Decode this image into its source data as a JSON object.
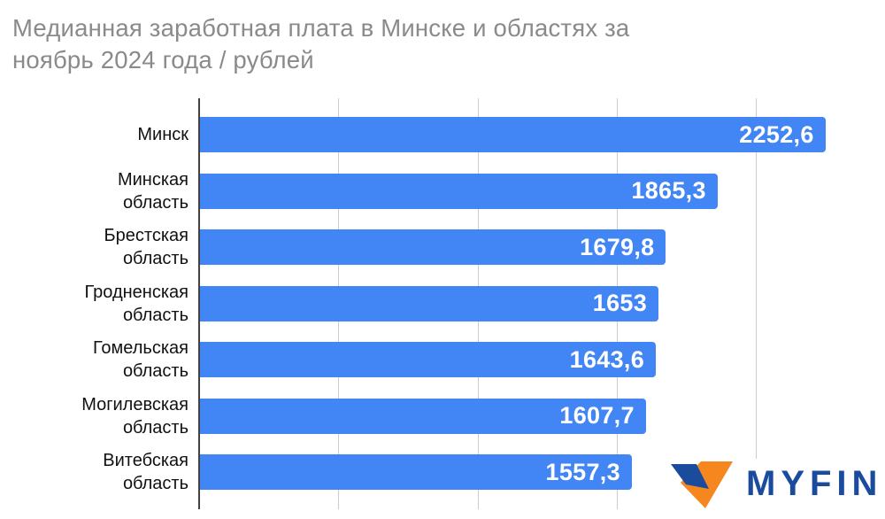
{
  "title": {
    "text": "Медианная заработная плата в Минске и областях за ноябрь 2024 года / рублей",
    "lines": [
      "Медианная заработная плата в Минске и областях за",
      "ноябрь 2024 года / рублей"
    ]
  },
  "chart_data": {
    "type": "bar",
    "orientation": "horizontal",
    "title": "Медианная заработная плата в Минске и областях за ноябрь 2024 года / рублей",
    "unit": "рублей",
    "categories": [
      "Минск",
      "Минская область",
      "Брестская область",
      "Гродненская область",
      "Гомельская область",
      "Могилевская область",
      "Витебская область"
    ],
    "category_lines": [
      [
        "Минск"
      ],
      [
        "Минская",
        "область"
      ],
      [
        "Брестская",
        "область"
      ],
      [
        "Гродненская",
        "область"
      ],
      [
        "Гомельская",
        "область"
      ],
      [
        "Могилевская",
        "область"
      ],
      [
        "Витебская",
        "область"
      ]
    ],
    "values": [
      2252.6,
      1865.3,
      1679.8,
      1653,
      1643.6,
      1607.7,
      1557.3
    ],
    "value_labels": [
      "2252,6",
      "1865,3",
      "1679,8",
      "1653",
      "1643,6",
      "1607,7",
      "1557,3"
    ],
    "xlim": [
      0,
      2465
    ],
    "gridline_values": [
      500,
      1000,
      1500,
      2000
    ],
    "grid_on": true,
    "legend": "none",
    "colors": {
      "bar": "#4285F4",
      "value_label": "#ffffff",
      "category_label": "#111111",
      "title": "#8a8a8a",
      "axis_line": "#424242",
      "gridline": "#cccccc"
    }
  },
  "branding": {
    "logo_text": "MYFIN",
    "colors": {
      "navy": "#1a4b9d",
      "orange": "#f6871f"
    }
  }
}
